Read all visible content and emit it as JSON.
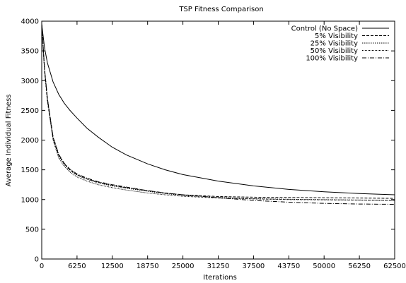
{
  "chart_data": {
    "type": "line",
    "title": "TSP Fitness Comparison",
    "xlabel": "Iterations",
    "ylabel": "Average Individual Fitness",
    "xlim": [
      0,
      62500
    ],
    "ylim": [
      0,
      4000
    ],
    "xticks": [
      0,
      6250,
      12500,
      18750,
      25000,
      31250,
      37500,
      43750,
      50000,
      56250,
      62500
    ],
    "yticks": [
      0,
      500,
      1000,
      1500,
      2000,
      2500,
      3000,
      3500,
      4000
    ],
    "legend_position": "top-right",
    "grid": false,
    "series": [
      {
        "name": "Control (No Space)",
        "dash": "solid",
        "x": [
          0,
          500,
          1000,
          2000,
          3000,
          4000,
          5000,
          6250,
          8000,
          10000,
          12500,
          15000,
          18750,
          21875,
          25000,
          31250,
          37500,
          43750,
          50000,
          56250,
          62500
        ],
        "y": [
          3950,
          3550,
          3300,
          2980,
          2770,
          2620,
          2500,
          2370,
          2200,
          2050,
          1880,
          1750,
          1600,
          1500,
          1420,
          1310,
          1230,
          1170,
          1130,
          1100,
          1080
        ]
      },
      {
        "name": "5% Visibility",
        "dash": "dashed",
        "x": [
          0,
          500,
          1000,
          2000,
          3000,
          4000,
          5000,
          6250,
          8000,
          10000,
          12500,
          15000,
          18750,
          21875,
          25000,
          31250,
          37500,
          43750,
          50000,
          56250,
          62500
        ],
        "y": [
          3950,
          3200,
          2700,
          2050,
          1750,
          1600,
          1500,
          1420,
          1350,
          1290,
          1240,
          1200,
          1150,
          1110,
          1080,
          1050,
          1040,
          1035,
          1030,
          1025,
          1020
        ]
      },
      {
        "name": "25% Visibility",
        "dash": "dotted",
        "x": [
          0,
          500,
          1000,
          2000,
          3000,
          4000,
          5000,
          6250,
          8000,
          10000,
          12500,
          15000,
          18750,
          21875,
          25000,
          31250,
          37500,
          43750,
          50000,
          56250,
          62500
        ],
        "y": [
          3950,
          3180,
          2680,
          2030,
          1730,
          1590,
          1490,
          1410,
          1340,
          1280,
          1230,
          1190,
          1140,
          1100,
          1070,
          1035,
          1015,
          1005,
          998,
          992,
          985
        ]
      },
      {
        "name": "50% Visibility",
        "dash": "fine-dotted",
        "x": [
          0,
          500,
          1000,
          2000,
          3000,
          4000,
          5000,
          6250,
          8000,
          10000,
          12500,
          15000,
          18750,
          21875,
          25000,
          31250,
          37500,
          43750,
          50000,
          56250,
          62500
        ],
        "y": [
          3950,
          3150,
          2650,
          2000,
          1700,
          1560,
          1460,
          1380,
          1310,
          1250,
          1200,
          1160,
          1110,
          1080,
          1055,
          1025,
          1010,
          1000,
          995,
          990,
          985
        ]
      },
      {
        "name": "100% Visibility",
        "dash": "dash-dot",
        "x": [
          0,
          500,
          1000,
          2000,
          3000,
          4000,
          5000,
          6250,
          8000,
          10000,
          12500,
          15000,
          18750,
          21875,
          25000,
          31250,
          37500,
          43750,
          50000,
          56250,
          62500
        ],
        "y": [
          3950,
          3200,
          2700,
          2060,
          1760,
          1610,
          1510,
          1430,
          1360,
          1300,
          1250,
          1210,
          1150,
          1110,
          1080,
          1030,
          985,
          955,
          935,
          925,
          920
        ]
      }
    ]
  }
}
